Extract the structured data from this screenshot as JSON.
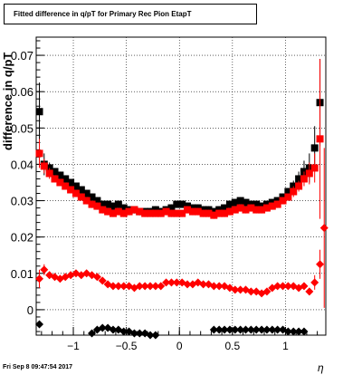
{
  "chart_data": {
    "type": "scatter",
    "title": "Fitted difference in q/pT for Primary Rec Pion EtapT",
    "xlabel": "η",
    "ylabel": "difference in q/pT",
    "xlim": [
      -1.35,
      1.38
    ],
    "ylim": [
      -0.007,
      0.075
    ],
    "grid": true,
    "x_ticks": [
      -1,
      -0.5,
      0,
      0.5,
      1
    ],
    "x_tick_labels": [
      "−1",
      "−0.5",
      "0",
      "0.5",
      "1"
    ],
    "y_ticks": [
      0,
      0.01,
      0.02,
      0.03,
      0.04,
      0.05,
      0.06,
      0.07
    ],
    "y_tick_labels": [
      "0",
      "0.01",
      "0.02",
      "0.03",
      "0.04",
      "0.05",
      "0.06",
      "0.07"
    ],
    "series": [
      {
        "marker": "square",
        "color": "#000000",
        "x": [
          -1.32,
          -1.275,
          -1.225,
          -1.175,
          -1.125,
          -1.075,
          -1.025,
          -0.975,
          -0.925,
          -0.875,
          -0.825,
          -0.775,
          -0.725,
          -0.675,
          -0.625,
          -0.575,
          -0.525,
          -0.475,
          -0.425,
          -0.375,
          -0.325,
          -0.275,
          -0.225,
          -0.175,
          -0.125,
          -0.075,
          -0.025,
          0.025,
          0.075,
          0.125,
          0.175,
          0.225,
          0.275,
          0.325,
          0.375,
          0.425,
          0.475,
          0.525,
          0.575,
          0.625,
          0.675,
          0.725,
          0.775,
          0.825,
          0.875,
          0.925,
          0.975,
          1.025,
          1.075,
          1.125,
          1.175,
          1.225,
          1.275,
          1.325
        ],
        "y": [
          0.0545,
          0.04,
          0.039,
          0.038,
          0.037,
          0.036,
          0.035,
          0.034,
          0.033,
          0.032,
          0.031,
          0.03,
          0.029,
          0.029,
          0.0285,
          0.029,
          0.028,
          0.0275,
          0.0275,
          0.027,
          0.027,
          0.027,
          0.0275,
          0.027,
          0.0275,
          0.028,
          0.029,
          0.029,
          0.0285,
          0.028,
          0.028,
          0.0275,
          0.0275,
          0.027,
          0.0275,
          0.028,
          0.029,
          0.0295,
          0.03,
          0.0295,
          0.029,
          0.029,
          0.0285,
          0.029,
          0.0295,
          0.03,
          0.031,
          0.0325,
          0.034,
          0.036,
          0.038,
          0.039,
          0.0445,
          0.057
        ],
        "yerr": [
          0.008,
          0.003,
          0.0015,
          0.001,
          0.001,
          0.001,
          0.001,
          0.001,
          0.001,
          0.001,
          0.001,
          0.001,
          0.001,
          0.001,
          0.001,
          0.001,
          0.001,
          0.001,
          0.001,
          0.001,
          0.001,
          0.001,
          0.001,
          0.001,
          0.001,
          0.001,
          0.001,
          0.001,
          0.001,
          0.001,
          0.001,
          0.001,
          0.001,
          0.001,
          0.001,
          0.001,
          0.001,
          0.001,
          0.001,
          0.001,
          0.001,
          0.001,
          0.001,
          0.001,
          0.001,
          0.001,
          0.001,
          0.001,
          0.0015,
          0.002,
          0.003,
          0.004,
          0.006,
          0.012
        ]
      },
      {
        "marker": "square",
        "color": "#ff0000",
        "x": [
          -1.32,
          -1.275,
          -1.225,
          -1.175,
          -1.125,
          -1.075,
          -1.025,
          -0.975,
          -0.925,
          -0.875,
          -0.825,
          -0.775,
          -0.725,
          -0.675,
          -0.625,
          -0.575,
          -0.525,
          -0.475,
          -0.425,
          -0.375,
          -0.325,
          -0.275,
          -0.225,
          -0.175,
          -0.125,
          -0.075,
          -0.025,
          0.025,
          0.075,
          0.125,
          0.175,
          0.225,
          0.275,
          0.325,
          0.375,
          0.425,
          0.475,
          0.525,
          0.575,
          0.625,
          0.675,
          0.725,
          0.775,
          0.825,
          0.875,
          0.925,
          0.975,
          1.025,
          1.075,
          1.125,
          1.175,
          1.225,
          1.275,
          1.325
        ],
        "y": [
          0.043,
          0.0395,
          0.0375,
          0.036,
          0.035,
          0.034,
          0.033,
          0.032,
          0.031,
          0.03,
          0.029,
          0.0285,
          0.0275,
          0.027,
          0.0265,
          0.027,
          0.0265,
          0.027,
          0.0275,
          0.027,
          0.0265,
          0.0265,
          0.0265,
          0.0265,
          0.027,
          0.0265,
          0.0265,
          0.0265,
          0.0275,
          0.027,
          0.027,
          0.0265,
          0.0265,
          0.026,
          0.0265,
          0.0265,
          0.027,
          0.0275,
          0.028,
          0.0275,
          0.028,
          0.0275,
          0.0275,
          0.028,
          0.0285,
          0.029,
          0.03,
          0.031,
          0.0325,
          0.034,
          0.036,
          0.0375,
          0.039,
          0.047
        ],
        "yerr": [
          0.004,
          0.002,
          0.0015,
          0.001,
          0.001,
          0.001,
          0.001,
          0.001,
          0.001,
          0.001,
          0.001,
          0.001,
          0.001,
          0.001,
          0.001,
          0.001,
          0.001,
          0.001,
          0.001,
          0.001,
          0.001,
          0.001,
          0.001,
          0.001,
          0.001,
          0.001,
          0.001,
          0.001,
          0.001,
          0.001,
          0.001,
          0.001,
          0.001,
          0.001,
          0.001,
          0.001,
          0.001,
          0.001,
          0.001,
          0.001,
          0.001,
          0.001,
          0.001,
          0.001,
          0.001,
          0.001,
          0.001,
          0.001,
          0.0015,
          0.0015,
          0.002,
          0.003,
          0.004,
          0.022
        ]
      },
      {
        "marker": "diamond",
        "color": "#ff0000",
        "x": [
          -1.32,
          -1.275,
          -1.225,
          -1.175,
          -1.125,
          -1.075,
          -1.025,
          -0.975,
          -0.925,
          -0.875,
          -0.825,
          -0.775,
          -0.725,
          -0.675,
          -0.625,
          -0.575,
          -0.525,
          -0.475,
          -0.425,
          -0.375,
          -0.325,
          -0.275,
          -0.225,
          -0.175,
          -0.125,
          -0.075,
          -0.025,
          0.025,
          0.075,
          0.125,
          0.175,
          0.225,
          0.275,
          0.325,
          0.375,
          0.425,
          0.475,
          0.525,
          0.575,
          0.625,
          0.675,
          0.725,
          0.775,
          0.825,
          0.875,
          0.925,
          0.975,
          1.025,
          1.075,
          1.125,
          1.175,
          1.225,
          1.275,
          1.325,
          1.365
        ],
        "y": [
          0.0085,
          0.011,
          0.0095,
          0.009,
          0.0085,
          0.009,
          0.0095,
          0.01,
          0.0095,
          0.01,
          0.0095,
          0.009,
          0.008,
          0.007,
          0.0065,
          0.0065,
          0.0065,
          0.0065,
          0.006,
          0.0065,
          0.0065,
          0.0065,
          0.0065,
          0.0065,
          0.0075,
          0.0075,
          0.0075,
          0.0075,
          0.007,
          0.007,
          0.0075,
          0.007,
          0.007,
          0.0065,
          0.0065,
          0.0065,
          0.006,
          0.0055,
          0.0055,
          0.0055,
          0.005,
          0.005,
          0.0045,
          0.005,
          0.006,
          0.0065,
          0.0065,
          0.0065,
          0.0065,
          0.006,
          0.0065,
          0.005,
          0.0075,
          0.0125,
          0.0225
        ],
        "yerr": [
          0.0025,
          0.0015,
          0.001,
          0.0005,
          0.0005,
          0.0005,
          0.0005,
          0.0005,
          0.0005,
          0.0005,
          0.0005,
          0.0005,
          0.0005,
          0.0005,
          0.0005,
          0.0005,
          0.0005,
          0.0005,
          0.0005,
          0.0005,
          0.0005,
          0.0005,
          0.0005,
          0.0005,
          0.0005,
          0.0005,
          0.0005,
          0.0005,
          0.0005,
          0.0005,
          0.0005,
          0.0005,
          0.0005,
          0.0005,
          0.0005,
          0.0005,
          0.0005,
          0.0005,
          0.0005,
          0.0005,
          0.0005,
          0.0005,
          0.0005,
          0.0005,
          0.0005,
          0.0005,
          0.0005,
          0.0005,
          0.0005,
          0.0005,
          0.0005,
          0.001,
          0.002,
          0.004,
          0.022
        ]
      },
      {
        "marker": "diamond",
        "color": "#000000",
        "x": [
          -1.32,
          -0.825,
          -0.775,
          -0.725,
          -0.675,
          -0.625,
          -0.575,
          -0.525,
          -0.475,
          -0.425,
          -0.375,
          -0.325,
          -0.275,
          -0.225,
          0.325,
          0.375,
          0.425,
          0.475,
          0.525,
          0.575,
          0.625,
          0.675,
          0.725,
          0.775,
          0.825,
          0.875,
          0.925,
          0.975,
          1.025,
          1.075,
          1.125,
          1.175
        ],
        "y": [
          -0.004,
          -0.0065,
          -0.0055,
          -0.005,
          -0.005,
          -0.0055,
          -0.0055,
          -0.006,
          -0.006,
          -0.0065,
          -0.0065,
          -0.0065,
          -0.007,
          -0.007,
          -0.0055,
          -0.0055,
          -0.0055,
          -0.0055,
          -0.0055,
          -0.0055,
          -0.0055,
          -0.0055,
          -0.0055,
          -0.0055,
          -0.0055,
          -0.0055,
          -0.0055,
          -0.0055,
          -0.006,
          -0.006,
          -0.006,
          -0.006
        ],
        "yerr": []
      }
    ]
  },
  "footer": {
    "timestamp": "Fri Sep  8 09:47:54 2017"
  }
}
